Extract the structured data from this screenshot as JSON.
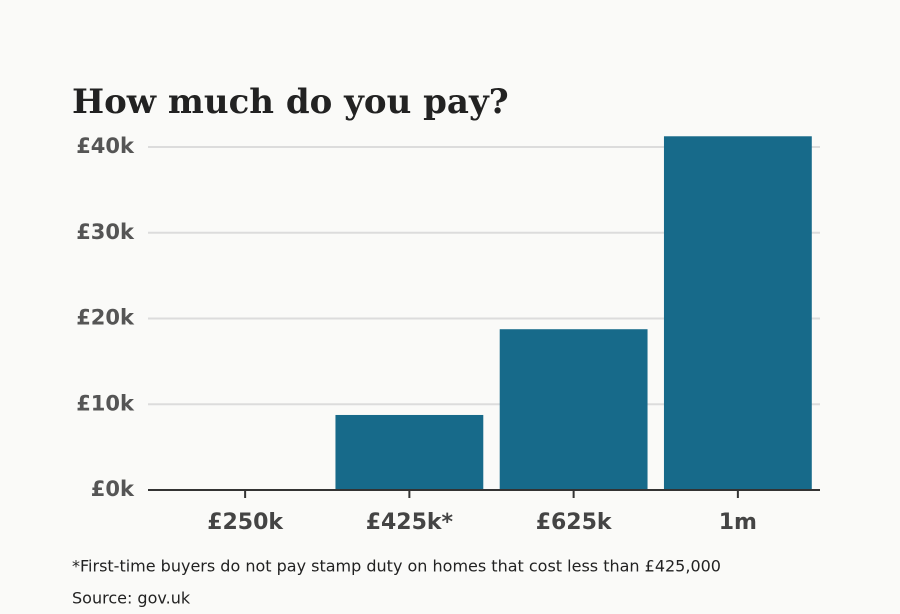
{
  "chart_data": {
    "type": "bar",
    "title": "How much do you pay?",
    "categories": [
      "£250k",
      "£425k*",
      "£625k",
      "1m"
    ],
    "values": [
      0,
      8750,
      18750,
      41250
    ],
    "color": "#176a8a",
    "ylim": [
      0,
      40000
    ],
    "yticks": [
      {
        "value": 0,
        "label": "£0k"
      },
      {
        "value": 10000,
        "label": "£10k"
      },
      {
        "value": 20000,
        "label": "£20k"
      },
      {
        "value": 30000,
        "label": "£30k"
      },
      {
        "value": 40000,
        "label": "£40k"
      }
    ],
    "grid": true,
    "footnote": "*First-time buyers do not pay stamp duty on homes that cost less than £425,000",
    "source": "Source: gov.uk"
  }
}
